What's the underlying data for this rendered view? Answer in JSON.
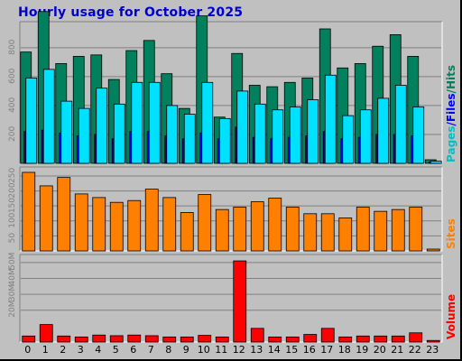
{
  "title": "Hourly usage for October 2025",
  "labels": {
    "pages": "Pages",
    "files": "Files",
    "hits": "Hits",
    "sites": "Sites",
    "volume": "Volume",
    "sep": "/"
  },
  "colors": {
    "hits": "#00805c",
    "files": "#0000ff",
    "pages": "#00e0ff",
    "sites": "#ff8000",
    "volume": "#ff0000",
    "frame": "#c0c0c0",
    "title": "#0000cc"
  },
  "chart_data": [
    {
      "type": "bar",
      "title": "Hourly usage for October 2025",
      "categories": [
        "0",
        "1",
        "2",
        "3",
        "4",
        "5",
        "6",
        "7",
        "8",
        "9",
        "10",
        "11",
        "12",
        "13",
        "14",
        "15",
        "16",
        "17",
        "18",
        "19",
        "20",
        "21",
        "22",
        "23"
      ],
      "ylim": [
        0,
        980
      ],
      "yticks": [
        200,
        400,
        600,
        800
      ],
      "ytick_labels": [
        "200",
        "400",
        "600",
        "800"
      ],
      "grid": true,
      "series": [
        {
          "name": "Hits",
          "values": [
            770,
            1050,
            690,
            740,
            750,
            580,
            780,
            850,
            620,
            380,
            1020,
            320,
            760,
            540,
            530,
            560,
            590,
            930,
            660,
            690,
            810,
            890,
            740,
            25
          ]
        },
        {
          "name": "Files",
          "values": [
            220,
            230,
            210,
            190,
            200,
            170,
            220,
            220,
            190,
            170,
            210,
            170,
            250,
            180,
            170,
            180,
            190,
            220,
            170,
            180,
            200,
            200,
            190,
            10
          ]
        },
        {
          "name": "Pages",
          "values": [
            590,
            650,
            430,
            380,
            520,
            410,
            560,
            560,
            400,
            340,
            560,
            310,
            500,
            410,
            370,
            390,
            440,
            610,
            330,
            370,
            450,
            540,
            390,
            15
          ]
        }
      ]
    },
    {
      "type": "bar",
      "categories": [
        "0",
        "1",
        "2",
        "3",
        "4",
        "5",
        "6",
        "7",
        "8",
        "9",
        "10",
        "11",
        "12",
        "13",
        "14",
        "15",
        "16",
        "17",
        "18",
        "19",
        "20",
        "21",
        "22",
        "23"
      ],
      "ylim": [
        0,
        280
      ],
      "yticks": [
        50,
        100,
        150,
        200,
        250
      ],
      "ytick_labels": [
        "50",
        "100",
        "150",
        "200",
        "250"
      ],
      "grid": true,
      "series": [
        {
          "name": "Sites",
          "values": [
            262,
            217,
            245,
            190,
            178,
            162,
            168,
            206,
            178,
            128,
            188,
            138,
            146,
            164,
            176,
            146,
            124,
            124,
            110,
            146,
            132,
            138,
            146,
            6
          ]
        }
      ]
    },
    {
      "type": "bar",
      "categories": [
        "0",
        "1",
        "2",
        "3",
        "4",
        "5",
        "6",
        "7",
        "8",
        "9",
        "10",
        "11",
        "12",
        "13",
        "14",
        "15",
        "16",
        "17",
        "18",
        "19",
        "20",
        "21",
        "22",
        "23"
      ],
      "ylim": [
        0,
        55
      ],
      "yticks": [
        20,
        30,
        40,
        50
      ],
      "ytick_labels": [
        "20M",
        "30M",
        "40M",
        "50M"
      ],
      "grid": true,
      "series": [
        {
          "name": "Volume",
          "values": [
            3.8,
            11.0,
            3.8,
            3.2,
            4.4,
            4.0,
            4.4,
            4.0,
            3.2,
            3.2,
            4.2,
            3.2,
            51.0,
            8.6,
            3.2,
            3.2,
            4.8,
            8.6,
            3.2,
            3.8,
            3.8,
            3.8,
            5.8,
            1.0
          ]
        }
      ]
    }
  ]
}
